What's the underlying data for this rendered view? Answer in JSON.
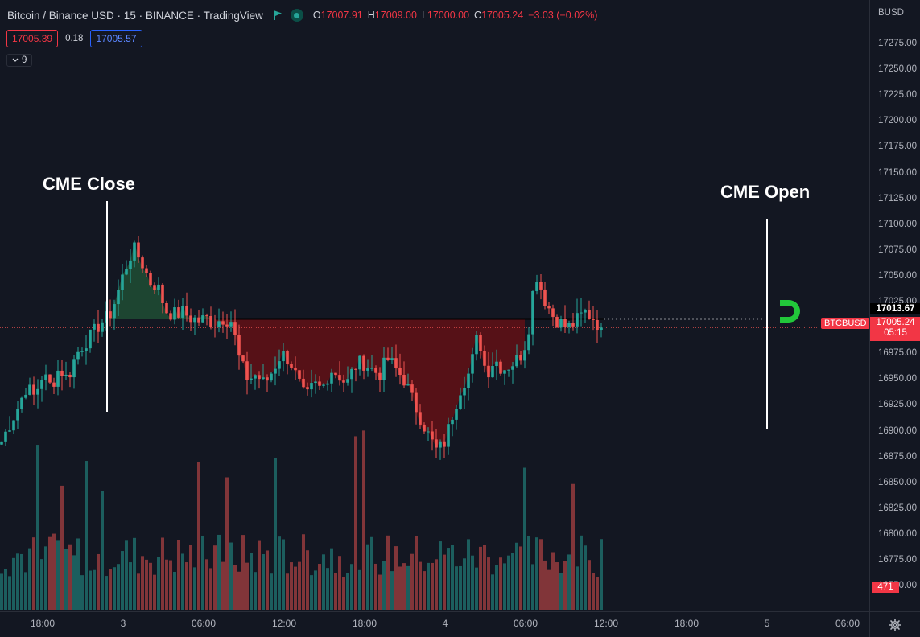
{
  "legend": {
    "title": "Bitcoin / Binance USD · 15 · BINANCE · TradingView",
    "open_key": "O",
    "open": "17007.91",
    "high_key": "H",
    "high": "17009.00",
    "low_key": "L",
    "low": "17000.00",
    "close_key": "C",
    "close": "17005.24",
    "change": "−3.03 (−0.02%)"
  },
  "quote": {
    "bid": "17005.39",
    "spread": "0.18",
    "ask": "17005.57"
  },
  "indicators_toggle": {
    "count": "9"
  },
  "annotations": {
    "left": "CME Close",
    "right": "CME Open"
  },
  "price_axis": {
    "currency": "BUSD",
    "ticks": [
      "17275.00",
      "17250.00",
      "17225.00",
      "17200.00",
      "17175.00",
      "17150.00",
      "17125.00",
      "17100.00",
      "17075.00",
      "17050.00",
      "17025.00",
      "17000.00",
      "16975.00",
      "16950.00",
      "16925.00",
      "16900.00",
      "16875.00",
      "16850.00",
      "16825.00",
      "16800.00",
      "16775.00",
      "16750.00"
    ],
    "cme_level": "17013.67",
    "last_price": "17005.24",
    "countdown": "05:15",
    "symbol": "BTCBUSD",
    "volume": "471"
  },
  "time_axis": {
    "ticks": [
      "18:00",
      "3",
      "06:00",
      "12:00",
      "18:00",
      "4",
      "06:00",
      "12:00",
      "18:00",
      "5",
      "06:00"
    ]
  },
  "colors": {
    "up": "#26a69a",
    "down": "#ef5350",
    "background": "#131722",
    "gap_fill": "#5a1117",
    "close_fill": "#1f4a33"
  },
  "chart_data": {
    "type": "candlestick",
    "series": [
      {
        "name": "BTCBUSD",
        "interval": "15"
      }
    ],
    "ylim": [
      16862,
      17280
    ],
    "cme_close_level": 17013.67,
    "last": 17005.24,
    "x": [
      "18:00",
      "3",
      "06:00",
      "12:00",
      "18:00",
      "4",
      "06:00",
      "12:00"
    ],
    "close_path": [
      16895,
      16912,
      16928,
      16948,
      16938,
      16960,
      16948,
      16966,
      16955,
      16978,
      16990,
      16998,
      17010,
      17015,
      17035,
      17062,
      17082,
      17070,
      17050,
      17045,
      17022,
      17018,
      17020,
      17015,
      17012,
      17014,
      17010,
      17015,
      17012,
      16972,
      16955,
      16960,
      16950,
      16964,
      16980,
      16975,
      16955,
      16935,
      16950,
      16945,
      16965,
      16960,
      16950,
      16968,
      16972,
      16965,
      16960,
      16975,
      16965,
      16955,
      16935,
      16918,
      16900,
      16885,
      16895,
      16925,
      16950,
      16962,
      17000,
      16960,
      16975,
      16965,
      16970,
      16975,
      16995,
      17060,
      17035,
      17018,
      17010,
      17005,
      17012,
      17020,
      17015,
      17005
    ]
  }
}
